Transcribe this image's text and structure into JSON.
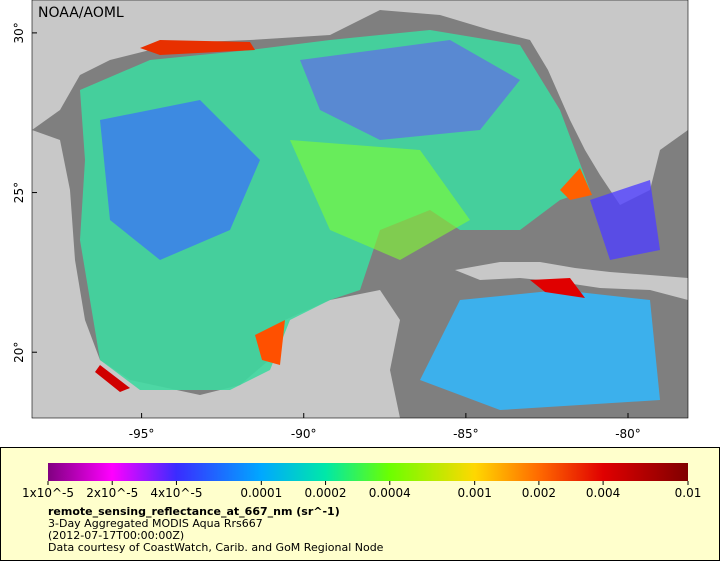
{
  "map": {
    "title": "NOAA/AOML",
    "xlim": [
      -98.38,
      -78.15
    ],
    "ylim": [
      17.94,
      31.03
    ],
    "xticks": [
      {
        "value": -95,
        "label": "-95°"
      },
      {
        "value": -90,
        "label": "-90°"
      },
      {
        "value": -85,
        "label": "-85°"
      },
      {
        "value": -80,
        "label": "-80°"
      }
    ],
    "yticks": [
      {
        "value": 20,
        "label": "20°"
      },
      {
        "value": 25,
        "label": "25°"
      },
      {
        "value": 30,
        "label": "30°"
      }
    ]
  },
  "colorbar": {
    "scale": "log",
    "range": [
      1e-05,
      0.01
    ],
    "ticks": [
      {
        "value": 1e-05,
        "label": "1x10^-5"
      },
      {
        "value": 2e-05,
        "label": "2x10^-5"
      },
      {
        "value": 4e-05,
        "label": "4x10^-5"
      },
      0.0001,
      0.0002,
      0.0004,
      0.001,
      0.002,
      0.004,
      0.01
    ],
    "colors": [
      "#800080",
      "#ff00ff",
      "#3a2cff",
      "#00a8ff",
      "#00e8a8",
      "#6cff00",
      "#ffd800",
      "#ff6a00",
      "#e00000",
      "#800000"
    ]
  },
  "legend": {
    "variable": "remote_sensing_reflectance_at_667_nm (sr^-1)",
    "lines": [
      "3-Day Aggregated MODIS Aqua Rrs667",
      "(2012-07-17T00:00:00Z)",
      "Data courtesy of CoastWatch, Carib. and GoM Regional Node"
    ]
  }
}
